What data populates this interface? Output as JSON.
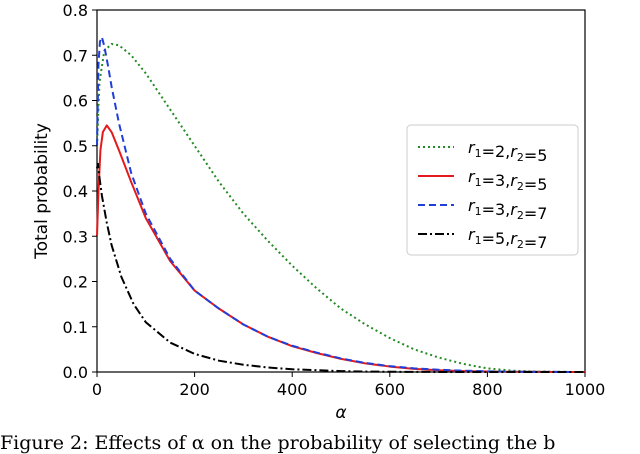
{
  "caption": "Figure 2: Effects of α on the probability of selecting the b",
  "chart_data": {
    "type": "line",
    "title": "",
    "xlabel": "α",
    "ylabel": "Total probability",
    "xlim": [
      0,
      1000
    ],
    "ylim": [
      0,
      0.8
    ],
    "xticks": [
      0,
      200,
      400,
      600,
      800,
      1000
    ],
    "xtick_labels": [
      "0",
      "200",
      "400",
      "600",
      "800",
      "1000"
    ],
    "yticks": [
      0.0,
      0.1,
      0.2,
      0.3,
      0.4,
      0.5,
      0.6,
      0.7,
      0.8
    ],
    "ytick_labels": [
      "0.0",
      "0.1",
      "0.2",
      "0.3",
      "0.4",
      "0.5",
      "0.6",
      "0.7",
      "0.8"
    ],
    "grid": false,
    "legend_position": "center-right",
    "series": [
      {
        "name": "r1=2,r2=5",
        "legend": {
          "a": "r",
          "a_sub": "1",
          "b": "=2,",
          "c": "r",
          "c_sub": "2",
          "d": "=5"
        },
        "color": "#228b22",
        "style": "dotted",
        "x": [
          0,
          5,
          15,
          30,
          45,
          70,
          100,
          150,
          200,
          250,
          300,
          350,
          400,
          450,
          500,
          550,
          600,
          650,
          700,
          750,
          800,
          850,
          900,
          950,
          1000
        ],
        "y": [
          0.5,
          0.64,
          0.71,
          0.725,
          0.722,
          0.7,
          0.66,
          0.58,
          0.5,
          0.42,
          0.35,
          0.29,
          0.235,
          0.185,
          0.14,
          0.105,
          0.075,
          0.05,
          0.032,
          0.018,
          0.008,
          0.003,
          0.001,
          0.0002,
          0.0
        ]
      },
      {
        "name": "r1=3,r2=5",
        "legend": {
          "a": "r",
          "a_sub": "1",
          "b": "=3,",
          "c": "r",
          "c_sub": "2",
          "d": "=5"
        },
        "color": "#e41a1c",
        "style": "solid",
        "x": [
          0,
          3,
          7,
          12,
          20,
          30,
          45,
          70,
          100,
          150,
          200,
          250,
          300,
          350,
          400,
          450,
          500,
          550,
          600,
          650,
          700,
          750,
          800,
          850,
          900,
          950,
          1000
        ],
        "y": [
          0.3,
          0.4,
          0.49,
          0.53,
          0.545,
          0.53,
          0.49,
          0.42,
          0.34,
          0.245,
          0.18,
          0.14,
          0.105,
          0.078,
          0.057,
          0.042,
          0.029,
          0.019,
          0.012,
          0.007,
          0.004,
          0.002,
          0.001,
          0.0005,
          0.0002,
          0.0001,
          0.0
        ]
      },
      {
        "name": "r1=3,r2=7",
        "legend": {
          "a": "r",
          "a_sub": "1",
          "b": "=3,",
          "c": "r",
          "c_sub": "2",
          "d": "=7"
        },
        "color": "#1f3fd8",
        "style": "dashed",
        "x": [
          0,
          3,
          6,
          10,
          15,
          22,
          30,
          45,
          70,
          100,
          150,
          200,
          250,
          300,
          350,
          400,
          450,
          500,
          550,
          600,
          650,
          700,
          750,
          800,
          850,
          900,
          950,
          1000
        ],
        "y": [
          0.5,
          0.68,
          0.73,
          0.74,
          0.72,
          0.68,
          0.63,
          0.55,
          0.44,
          0.35,
          0.25,
          0.18,
          0.14,
          0.105,
          0.078,
          0.058,
          0.043,
          0.03,
          0.02,
          0.013,
          0.008,
          0.005,
          0.003,
          0.0015,
          0.0008,
          0.0004,
          0.0002,
          0.0
        ]
      },
      {
        "name": "r1=5,r2=7",
        "legend": {
          "a": "r",
          "a_sub": "1",
          "b": "=5,",
          "c": "r",
          "c_sub": "2",
          "d": "=7"
        },
        "color": "#000000",
        "style": "dashdot",
        "x": [
          0,
          2,
          5,
          10,
          20,
          30,
          50,
          75,
          100,
          150,
          200,
          250,
          300,
          350,
          400,
          450,
          500,
          550,
          600,
          650,
          700,
          750,
          800,
          850,
          900,
          950,
          1000
        ],
        "y": [
          0.45,
          0.46,
          0.43,
          0.39,
          0.33,
          0.28,
          0.21,
          0.15,
          0.11,
          0.065,
          0.04,
          0.025,
          0.016,
          0.01,
          0.006,
          0.004,
          0.002,
          0.001,
          0.0005,
          0.0002,
          0.0001,
          0.0,
          0.0,
          0.0,
          0.0,
          0.0,
          0.0
        ]
      }
    ]
  }
}
